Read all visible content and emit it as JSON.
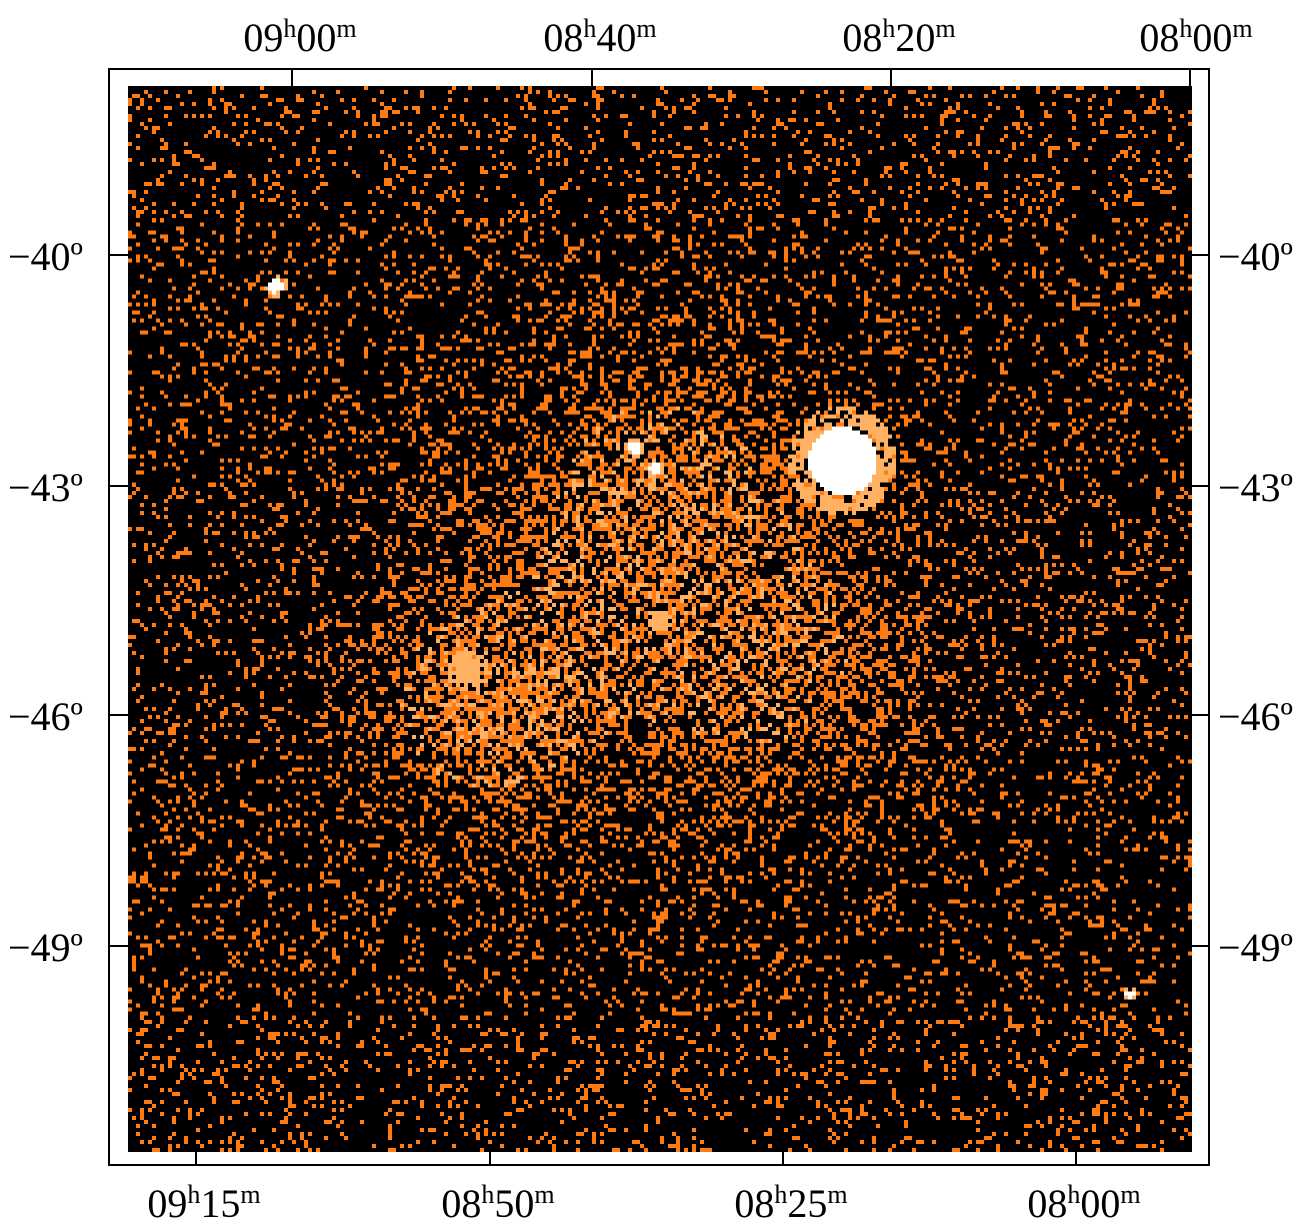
{
  "top_axis": {
    "labels": [
      {
        "h": "09",
        "m": "00"
      },
      {
        "h": "08",
        "m": "40"
      },
      {
        "h": "08",
        "m": "20"
      },
      {
        "h": "08",
        "m": "00"
      }
    ]
  },
  "bottom_axis": {
    "labels": [
      {
        "h": "09",
        "m": "15"
      },
      {
        "h": "08",
        "m": "50"
      },
      {
        "h": "08",
        "m": "25"
      },
      {
        "h": "08",
        "m": "00"
      }
    ]
  },
  "left_axis": {
    "labels": [
      "−40º",
      "−43º",
      "−46º",
      "−49º"
    ]
  },
  "right_axis": {
    "labels": [
      "−40º",
      "−43º",
      "−46º",
      "−49º"
    ]
  },
  "image": {
    "colormap": "black-orange-white",
    "colors": {
      "background": "#000000",
      "noise": "#ff7a10",
      "bright": "#ffb060",
      "core": "#ffffff"
    }
  }
}
